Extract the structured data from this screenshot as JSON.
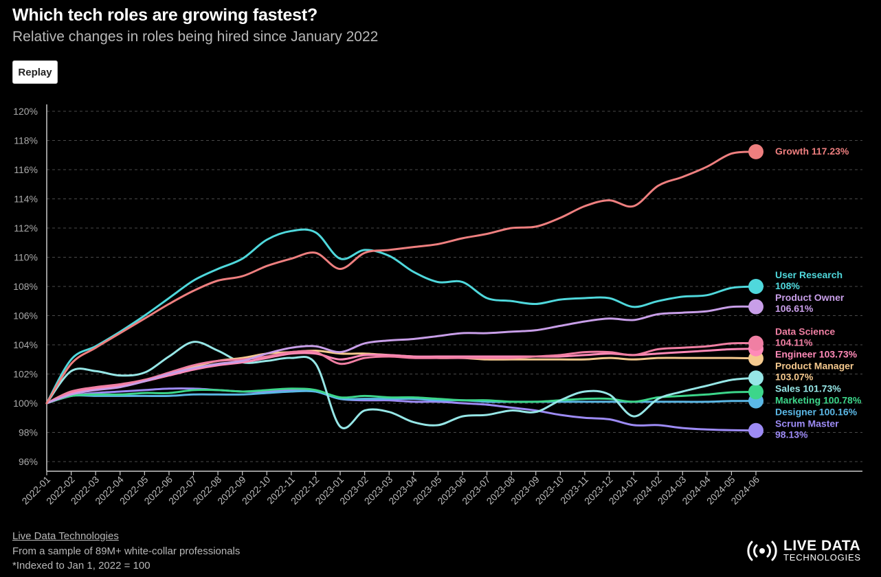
{
  "header": {
    "title": "Which tech roles are growing fastest?",
    "subtitle": "Relative changes in roles being hired since January 2022",
    "replay_label": "Replay"
  },
  "footer": {
    "source_link": "Live Data Technologies",
    "sample_note": "From a sample of 89M+ white-collar professionals",
    "index_note": "*Indexed to Jan 1, 2022 = 100"
  },
  "logo": {
    "line1": "LIVE DATA",
    "line2": "TECHNOLOGIES",
    "icon": "broadcast-icon"
  },
  "colors": {
    "background": "#000000",
    "grid": "#4a4a4a",
    "axis": "#cccccc"
  },
  "chart_data": {
    "type": "line",
    "title": "Which tech roles are growing fastest?",
    "xlabel": "",
    "ylabel": "",
    "ylim": [
      96,
      120
    ],
    "y_ticks": [
      96,
      98,
      100,
      102,
      104,
      106,
      108,
      110,
      112,
      114,
      116,
      118,
      120
    ],
    "y_tick_labels": [
      "96%",
      "98%",
      "100%",
      "102%",
      "104%",
      "106%",
      "108%",
      "110%",
      "112%",
      "114%",
      "116%",
      "118%",
      "120%"
    ],
    "grid": true,
    "categories": [
      "2022-01",
      "2022-02",
      "2022-03",
      "2022-04",
      "2022-05",
      "2022-06",
      "2022-07",
      "2022-08",
      "2022-09",
      "2022-10",
      "2022-11",
      "2022-12",
      "2023-01",
      "2023-02",
      "2023-03",
      "2023-04",
      "2023-05",
      "2023-06",
      "2023-07",
      "2023-08",
      "2023-09",
      "2023-10",
      "2023-11",
      "2023-12",
      "2024-01",
      "2024-02",
      "2024-03",
      "2024-04",
      "2024-05",
      "2024-06"
    ],
    "series": [
      {
        "name": "Growth",
        "label_lines": [
          "Growth 117.23%"
        ],
        "color": "#ee7f7f",
        "values": [
          100,
          102.7,
          103.8,
          104.8,
          105.8,
          106.8,
          107.7,
          108.4,
          108.7,
          109.4,
          109.9,
          110.3,
          109.2,
          110.3,
          110.5,
          110.7,
          110.9,
          111.3,
          111.6,
          112,
          112.1,
          112.7,
          113.5,
          113.9,
          113.5,
          114.9,
          115.5,
          116.2,
          117.1,
          117.23
        ]
      },
      {
        "name": "User Research",
        "label_lines": [
          "User Research",
          "108%"
        ],
        "color": "#4fd8dc",
        "values": [
          100,
          103,
          103.9,
          104.9,
          106,
          107.2,
          108.4,
          109.2,
          109.9,
          111.2,
          111.8,
          111.7,
          109.9,
          110.5,
          110.1,
          109,
          108.3,
          108.3,
          107.2,
          107,
          106.8,
          107.1,
          107.2,
          107.2,
          106.6,
          107,
          107.3,
          107.4,
          107.9,
          108
        ]
      },
      {
        "name": "Product Owner",
        "label_lines": [
          "Product Owner",
          "106.61%"
        ],
        "color": "#c89ee8",
        "values": [
          100,
          100.6,
          100.9,
          101.1,
          101.5,
          102,
          102.4,
          102.7,
          102.9,
          103.4,
          103.8,
          103.9,
          103.5,
          104.1,
          104.3,
          104.4,
          104.6,
          104.8,
          104.8,
          104.9,
          105,
          105.3,
          105.6,
          105.8,
          105.7,
          106.1,
          106.2,
          106.3,
          106.6,
          106.61
        ]
      },
      {
        "name": "Data Science",
        "label_lines": [
          "Data Science",
          "104.11%"
        ],
        "color": "#f07fa3",
        "values": [
          100,
          100.8,
          101.1,
          101.3,
          101.6,
          102.1,
          102.6,
          102.9,
          103,
          103.2,
          103.5,
          103.5,
          102.7,
          103.1,
          103.2,
          103.1,
          103.1,
          103.1,
          103.1,
          103.1,
          103.2,
          103.3,
          103.5,
          103.5,
          103.3,
          103.7,
          103.8,
          103.9,
          104.1,
          104.11
        ]
      },
      {
        "name": "Engineer",
        "label_lines": [
          "Engineer 103.73%"
        ],
        "color": "#ff8ab8",
        "values": [
          100,
          100.7,
          101,
          101.2,
          101.5,
          101.9,
          102.3,
          102.6,
          102.8,
          103.1,
          103.4,
          103.4,
          103,
          103.3,
          103.3,
          103.2,
          103.2,
          103.2,
          103.2,
          103.2,
          103.2,
          103.2,
          103.3,
          103.4,
          103.3,
          103.4,
          103.5,
          103.6,
          103.7,
          103.73
        ]
      },
      {
        "name": "Product Manager",
        "label_lines": [
          "Product Manager",
          "103.07%"
        ],
        "color": "#f5c98e",
        "values": [
          100,
          100.8,
          101,
          101.2,
          101.6,
          102,
          102.5,
          102.9,
          103.1,
          103.4,
          103.5,
          103.6,
          103.4,
          103.4,
          103.3,
          103.2,
          103.1,
          103.1,
          103,
          103,
          103,
          103,
          103,
          103.1,
          103,
          103.1,
          103.1,
          103.1,
          103.1,
          103.07
        ]
      },
      {
        "name": "Sales",
        "label_lines": [
          "Sales 101.73%"
        ],
        "color": "#96e6e6",
        "values": [
          100,
          102.2,
          102.2,
          101.9,
          102.1,
          103.2,
          104.2,
          103.6,
          102.8,
          102.9,
          103.1,
          102.7,
          98.4,
          99.5,
          99.4,
          98.7,
          98.5,
          99.1,
          99.2,
          99.5,
          99.4,
          100.2,
          100.8,
          100.6,
          99.1,
          100.3,
          100.8,
          101.2,
          101.6,
          101.73
        ]
      },
      {
        "name": "Marketing",
        "label_lines": [
          "Marketing 100.78%"
        ],
        "color": "#3cd68a",
        "values": [
          100,
          100.5,
          100.6,
          100.6,
          100.7,
          100.7,
          100.9,
          100.9,
          100.8,
          100.9,
          101,
          100.9,
          100.4,
          100.5,
          100.4,
          100.4,
          100.3,
          100.2,
          100.2,
          100.1,
          100.1,
          100.2,
          100.3,
          100.3,
          100.1,
          100.4,
          100.5,
          100.6,
          100.75,
          100.78
        ]
      },
      {
        "name": "Designer",
        "label_lines": [
          "Designer 100.16%"
        ],
        "color": "#5bb8e6",
        "values": [
          100,
          100.5,
          100.5,
          100.5,
          100.5,
          100.5,
          100.6,
          100.6,
          100.6,
          100.7,
          100.8,
          100.8,
          100.3,
          100.3,
          100.3,
          100.3,
          100.2,
          100.2,
          100.1,
          100.1,
          100.1,
          100.1,
          100.1,
          100.1,
          100.1,
          100.1,
          100.1,
          100.1,
          100.15,
          100.16
        ]
      },
      {
        "name": "Scrum Master",
        "label_lines": [
          "Scrum Master",
          "98.13%"
        ],
        "color": "#9d8bf5",
        "values": [
          100,
          100.5,
          100.7,
          100.8,
          100.9,
          101,
          101,
          100.9,
          100.8,
          100.8,
          100.9,
          100.8,
          100.3,
          100.2,
          100.2,
          100.1,
          100.1,
          100,
          99.9,
          99.7,
          99.5,
          99.2,
          99,
          98.9,
          98.5,
          98.5,
          98.3,
          98.2,
          98.15,
          98.13
        ]
      }
    ]
  }
}
